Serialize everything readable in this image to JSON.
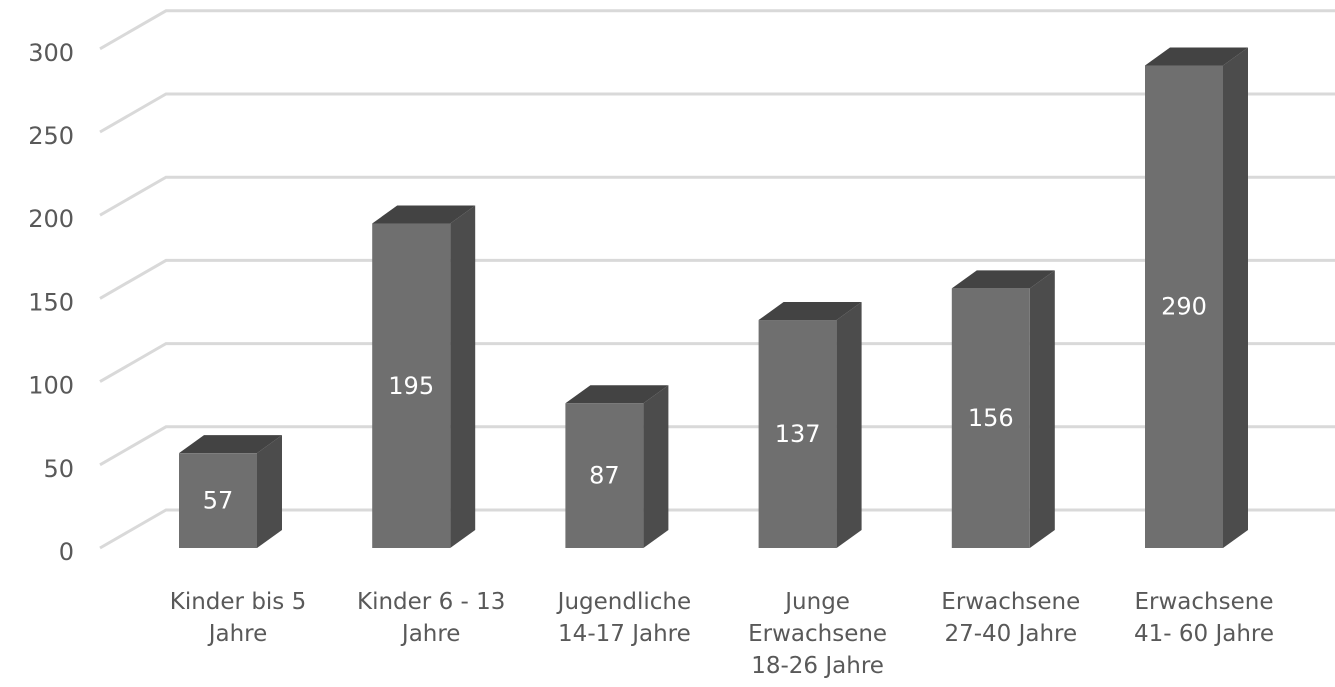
{
  "chart_data": {
    "type": "bar",
    "title": "",
    "xlabel": "",
    "ylabel": "",
    "categories": [
      [
        "Kinder bis 5",
        "Jahre"
      ],
      [
        "Kinder 6 - 13",
        "Jahre"
      ],
      [
        "Jugendliche",
        "14-17 Jahre"
      ],
      [
        "Junge",
        "Erwachsene",
        "18-26 Jahre"
      ],
      [
        "Erwachsene",
        "27-40 Jahre"
      ],
      [
        "Erwachsene",
        "41- 60 Jahre"
      ]
    ],
    "values": [
      57,
      195,
      87,
      137,
      156,
      290
    ],
    "ylim": [
      0,
      300
    ],
    "yticks": [
      0,
      50,
      100,
      150,
      200,
      250,
      300
    ],
    "grid": true,
    "legend": "none",
    "style": "3d-column",
    "colors": {
      "bar_front": "#6f6f6f",
      "bar_side": "#4c4c4c",
      "bar_top": "#434343",
      "grid": "#d9d9d9",
      "axis_text": "#595959",
      "data_label": "#ffffff"
    }
  }
}
